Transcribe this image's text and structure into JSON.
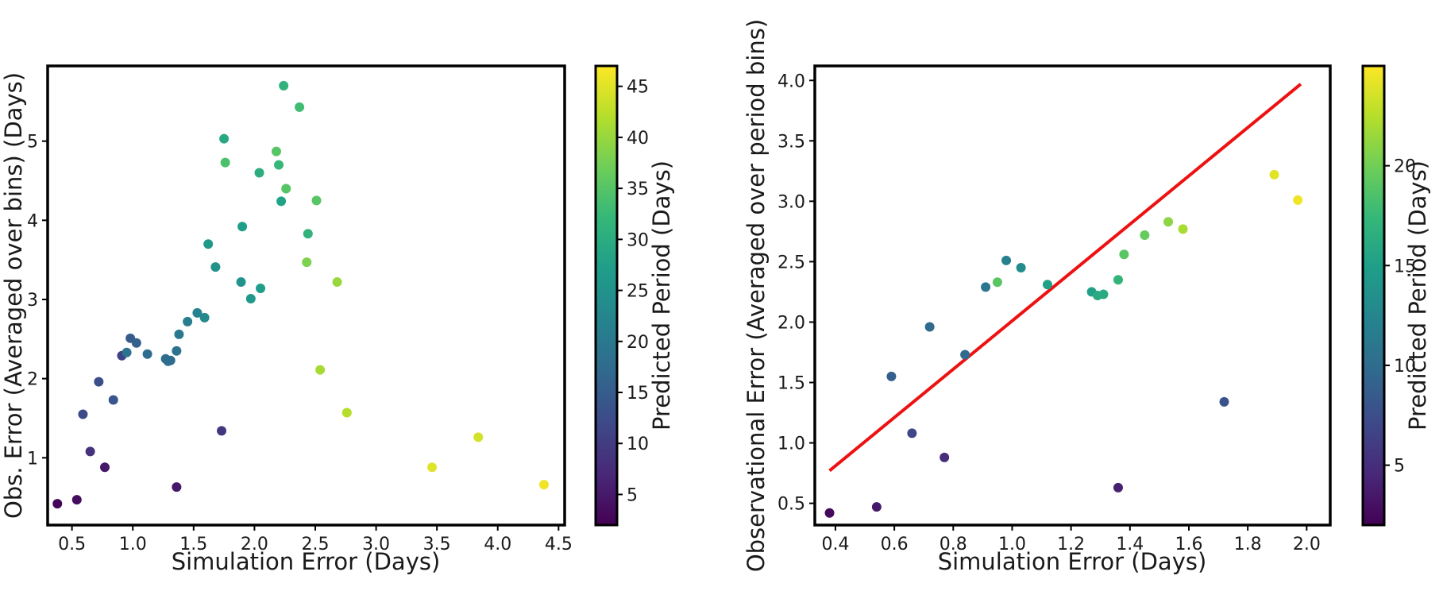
{
  "colormap": [
    "#440154",
    "#482878",
    "#3e4989",
    "#31688e",
    "#26828e",
    "#1f9e89",
    "#35b779",
    "#6ece58",
    "#b5de2b",
    "#fde725"
  ],
  "accent_line_color": "#ee1111",
  "chart_data": [
    {
      "type": "scatter",
      "title": "",
      "xlabel": "Simulation Error (Days)",
      "ylabel": "Obs. Error (Averaged over bins) (Days)",
      "xlim": [
        0.3,
        4.55
      ],
      "ylim": [
        0.15,
        5.95
      ],
      "xticks": [
        "0.5",
        "1.0",
        "1.5",
        "2.0",
        "2.5",
        "3.0",
        "3.5",
        "4.0",
        "4.5"
      ],
      "yticks": [
        "1",
        "2",
        "3",
        "4",
        "5"
      ],
      "colorbar": {
        "label": "Predicted Period (Days)",
        "min": 2,
        "max": 47,
        "ticks": [
          "5",
          "10",
          "15",
          "20",
          "25",
          "30",
          "35",
          "40",
          "45"
        ]
      },
      "points": [
        {
          "x": 0.38,
          "y": 0.42,
          "c": 2.5
        },
        {
          "x": 0.54,
          "y": 0.47,
          "c": 3.5
        },
        {
          "x": 0.65,
          "y": 1.08,
          "c": 8.5
        },
        {
          "x": 0.59,
          "y": 1.55,
          "c": 12
        },
        {
          "x": 0.72,
          "y": 1.96,
          "c": 13
        },
        {
          "x": 0.77,
          "y": 0.88,
          "c": 5
        },
        {
          "x": 0.84,
          "y": 1.73,
          "c": 14
        },
        {
          "x": 0.91,
          "y": 2.29,
          "c": 11
        },
        {
          "x": 0.95,
          "y": 2.33,
          "c": 19
        },
        {
          "x": 0.98,
          "y": 2.51,
          "c": 15
        },
        {
          "x": 1.03,
          "y": 2.45,
          "c": 16
        },
        {
          "x": 1.12,
          "y": 2.31,
          "c": 18
        },
        {
          "x": 1.27,
          "y": 2.25,
          "c": 18
        },
        {
          "x": 1.29,
          "y": 2.22,
          "c": 18
        },
        {
          "x": 1.31,
          "y": 2.23,
          "c": 18
        },
        {
          "x": 1.36,
          "y": 0.63,
          "c": 5
        },
        {
          "x": 1.36,
          "y": 2.35,
          "c": 19
        },
        {
          "x": 1.38,
          "y": 2.56,
          "c": 20
        },
        {
          "x": 1.45,
          "y": 2.72,
          "c": 21
        },
        {
          "x": 1.53,
          "y": 2.83,
          "c": 22
        },
        {
          "x": 1.59,
          "y": 2.77,
          "c": 23
        },
        {
          "x": 1.62,
          "y": 3.7,
          "c": 26
        },
        {
          "x": 1.68,
          "y": 3.41,
          "c": 25
        },
        {
          "x": 1.73,
          "y": 1.34,
          "c": 9
        },
        {
          "x": 1.75,
          "y": 5.03,
          "c": 29
        },
        {
          "x": 1.76,
          "y": 4.73,
          "c": 34
        },
        {
          "x": 1.89,
          "y": 3.22,
          "c": 25
        },
        {
          "x": 1.9,
          "y": 3.92,
          "c": 27
        },
        {
          "x": 1.97,
          "y": 3.01,
          "c": 26
        },
        {
          "x": 2.04,
          "y": 4.6,
          "c": 30
        },
        {
          "x": 2.05,
          "y": 3.14,
          "c": 27
        },
        {
          "x": 2.18,
          "y": 4.87,
          "c": 35
        },
        {
          "x": 2.2,
          "y": 4.7,
          "c": 32
        },
        {
          "x": 2.22,
          "y": 4.24,
          "c": 28
        },
        {
          "x": 2.24,
          "y": 5.7,
          "c": 31
        },
        {
          "x": 2.26,
          "y": 4.4,
          "c": 35
        },
        {
          "x": 2.37,
          "y": 5.43,
          "c": 33
        },
        {
          "x": 2.44,
          "y": 3.83,
          "c": 31
        },
        {
          "x": 2.43,
          "y": 3.47,
          "c": 38
        },
        {
          "x": 2.51,
          "y": 4.25,
          "c": 35
        },
        {
          "x": 2.54,
          "y": 2.11,
          "c": 41
        },
        {
          "x": 2.68,
          "y": 3.22,
          "c": 40
        },
        {
          "x": 2.76,
          "y": 1.57,
          "c": 42
        },
        {
          "x": 3.46,
          "y": 0.88,
          "c": 45
        },
        {
          "x": 3.84,
          "y": 1.26,
          "c": 44
        },
        {
          "x": 4.38,
          "y": 0.66,
          "c": 46
        }
      ]
    },
    {
      "type": "scatter",
      "title": "",
      "xlabel": "Simulation Error (Days)",
      "ylabel": "Observational Error (Averaged over period bins)",
      "xlim": [
        0.33,
        2.08
      ],
      "ylim": [
        0.32,
        4.12
      ],
      "xticks": [
        "0.4",
        "0.6",
        "0.8",
        "1.0",
        "1.2",
        "1.4",
        "1.6",
        "1.8",
        "2.0"
      ],
      "yticks": [
        "0.5",
        "1.0",
        "1.5",
        "2.0",
        "2.5",
        "3.0",
        "3.5",
        "4.0"
      ],
      "colorbar": {
        "label": "Predicted Period (Days)",
        "min": 2,
        "max": 25,
        "ticks": [
          "5",
          "10",
          "15",
          "20"
        ]
      },
      "fit_line": {
        "x": [
          0.38,
          1.98
        ],
        "y": [
          0.77,
          3.97
        ]
      },
      "points": [
        {
          "x": 0.38,
          "y": 0.42,
          "c": 2.5
        },
        {
          "x": 0.54,
          "y": 0.47,
          "c": 3.5
        },
        {
          "x": 0.59,
          "y": 1.55,
          "c": 9
        },
        {
          "x": 0.66,
          "y": 1.08,
          "c": 7
        },
        {
          "x": 0.72,
          "y": 1.96,
          "c": 10
        },
        {
          "x": 0.77,
          "y": 0.88,
          "c": 5
        },
        {
          "x": 0.84,
          "y": 1.73,
          "c": 10
        },
        {
          "x": 0.91,
          "y": 2.29,
          "c": 11
        },
        {
          "x": 0.95,
          "y": 2.33,
          "c": 19
        },
        {
          "x": 0.98,
          "y": 2.51,
          "c": 12
        },
        {
          "x": 1.03,
          "y": 2.45,
          "c": 13
        },
        {
          "x": 1.12,
          "y": 2.31,
          "c": 15
        },
        {
          "x": 1.27,
          "y": 2.25,
          "c": 15
        },
        {
          "x": 1.29,
          "y": 2.22,
          "c": 16
        },
        {
          "x": 1.31,
          "y": 2.23,
          "c": 16
        },
        {
          "x": 1.36,
          "y": 0.63,
          "c": 4
        },
        {
          "x": 1.36,
          "y": 2.35,
          "c": 17
        },
        {
          "x": 1.38,
          "y": 2.56,
          "c": 19
        },
        {
          "x": 1.45,
          "y": 2.72,
          "c": 19.5
        },
        {
          "x": 1.53,
          "y": 2.83,
          "c": 21
        },
        {
          "x": 1.58,
          "y": 2.77,
          "c": 22
        },
        {
          "x": 1.72,
          "y": 1.34,
          "c": 8
        },
        {
          "x": 1.89,
          "y": 3.22,
          "c": 24
        },
        {
          "x": 1.97,
          "y": 3.01,
          "c": 24.5
        }
      ]
    }
  ]
}
